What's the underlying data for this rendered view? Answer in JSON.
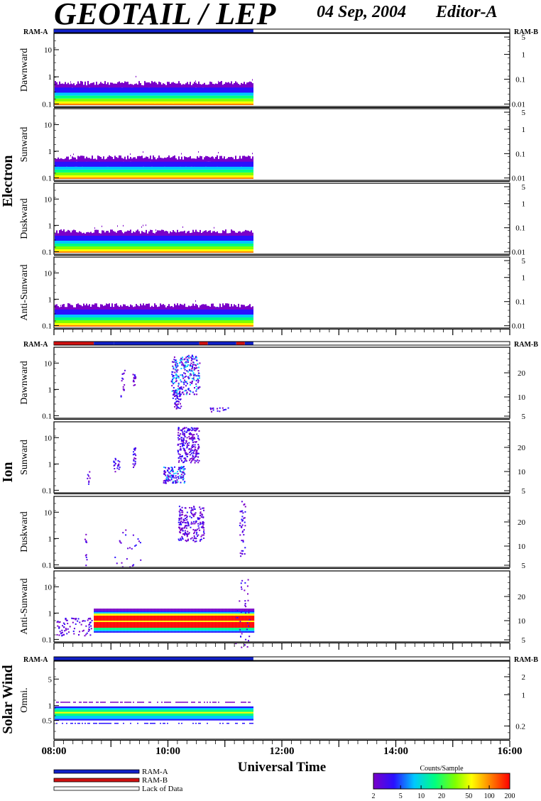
{
  "header": {
    "title": "GEOTAIL / LEP",
    "date": "04 Sep, 2004",
    "editor": "Editor-A"
  },
  "chart_data": {
    "type": "heatmap",
    "xlabel": "Universal Time",
    "x_ticks": [
      "08:00",
      "10:00",
      "12:00",
      "14:00",
      "16:00"
    ],
    "x_range_hours": [
      8,
      16
    ],
    "data_end_hour": 11.5,
    "mode_bar_labels": {
      "left": "RAM-A",
      "right": "RAM-B"
    },
    "legend": [
      {
        "label": "RAM-A",
        "color": "#1020c8"
      },
      {
        "label": "RAM-B",
        "color": "#d01010"
      },
      {
        "label": "Lack of Data",
        "color": "#ffffff"
      }
    ],
    "colorbar": {
      "title": "Counts/Sample",
      "ticks": [
        "2",
        "5",
        "10",
        "20",
        "50",
        "100",
        "200"
      ],
      "scale": "log",
      "range": [
        2,
        200
      ]
    },
    "groups": [
      {
        "label": "Electron",
        "mode_bar": [
          {
            "from": 8,
            "to": 11.5,
            "mode": "RAM-A"
          }
        ],
        "panels": [
          {
            "label": "Dawnward",
            "left_ticks": [
              "10",
              "1",
              "0.1"
            ],
            "right_ticks": [
              "5",
              "1",
              "0.1",
              "0.01"
            ]
          },
          {
            "label": "Sunward",
            "left_ticks": [
              "10",
              "1",
              "0.1"
            ],
            "right_ticks": [
              "5",
              "1",
              "0.1",
              "0.01"
            ]
          },
          {
            "label": "Duskward",
            "left_ticks": [
              "10",
              "1",
              "0.1"
            ],
            "right_ticks": [
              "5",
              "1",
              "0.1",
              "0.01"
            ]
          },
          {
            "label": "Anti-Sunward",
            "left_ticks": [
              "10",
              "1",
              "0.1"
            ],
            "right_ticks": [
              "5",
              "1",
              "0.1",
              "0.01"
            ]
          }
        ]
      },
      {
        "label": "Ion",
        "mode_bar": [
          {
            "from": 8,
            "to": 8.7,
            "mode": "RAM-B"
          },
          {
            "from": 8.7,
            "to": 9.05,
            "mode": "RAM-A"
          },
          {
            "from": 9.05,
            "to": 10.55,
            "mode": "RAM-A"
          },
          {
            "from": 10.55,
            "to": 10.7,
            "mode": "RAM-B"
          },
          {
            "from": 10.7,
            "to": 11.2,
            "mode": "RAM-A"
          },
          {
            "from": 11.2,
            "to": 11.35,
            "mode": "RAM-B"
          },
          {
            "from": 11.35,
            "to": 11.5,
            "mode": "RAM-A"
          }
        ],
        "panels": [
          {
            "label": "Dawnward",
            "left_ticks": [
              "10",
              "1",
              "0.1"
            ],
            "right_ticks": [
              "20",
              "10",
              "5"
            ]
          },
          {
            "label": "Sunward",
            "left_ticks": [
              "10",
              "1",
              "0.1"
            ],
            "right_ticks": [
              "20",
              "10",
              "5"
            ]
          },
          {
            "label": "Duskward",
            "left_ticks": [
              "10",
              "1",
              "0.1"
            ],
            "right_ticks": [
              "20",
              "10",
              "5"
            ]
          },
          {
            "label": "Anti-Sunward",
            "left_ticks": [
              "10",
              "1",
              "0.1"
            ],
            "right_ticks": [
              "20",
              "10",
              "5"
            ]
          }
        ]
      },
      {
        "label": "Solar Wind",
        "mode_bar": [
          {
            "from": 8,
            "to": 11.5,
            "mode": "RAM-A"
          }
        ],
        "panels": [
          {
            "label": "Omni.",
            "left_ticks": [
              "5",
              "1",
              "0.5"
            ],
            "right_ticks": [
              "2",
              "1",
              "0.2"
            ]
          }
        ]
      }
    ]
  }
}
